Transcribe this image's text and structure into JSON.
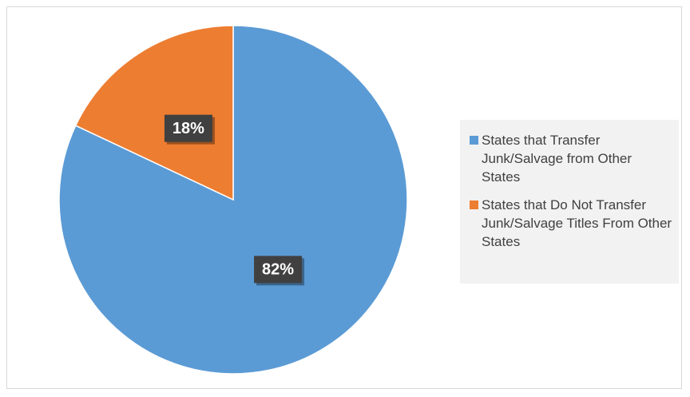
{
  "chart_data": {
    "type": "pie",
    "categories": [
      "States that Transfer Junk/Salvage from Other States",
      "States that Do Not Transfer Junk/Salvage Titles From Other States"
    ],
    "values": [
      82,
      18
    ],
    "value_labels": [
      "82%",
      "18%"
    ],
    "colors": [
      "#5b9bd5",
      "#ed7d31"
    ],
    "legend": "right"
  }
}
